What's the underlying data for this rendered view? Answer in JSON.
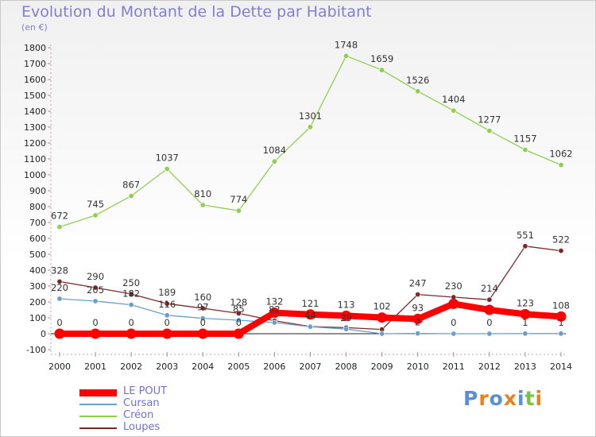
{
  "title": "Evolution du Montant de la Dette par Habitant",
  "subtitle": "(en €)",
  "logo": {
    "text": "Proxiti",
    "colors": [
      "#5a8fd6",
      "#e6821e",
      "#5a8fd6",
      "#e6821e",
      "#5a8fd6",
      "#7ac142",
      "#e6821e"
    ]
  },
  "chart_data": {
    "type": "line",
    "x": [
      "2000",
      "2001",
      "2002",
      "2003",
      "2004",
      "2005",
      "2006",
      "2007",
      "2008",
      "2009",
      "2010",
      "2011",
      "2012",
      "2013",
      "2014"
    ],
    "ylim": [
      -100,
      1800
    ],
    "yticks": [
      -100,
      0,
      100,
      200,
      300,
      400,
      500,
      600,
      700,
      800,
      900,
      1000,
      1100,
      1200,
      1300,
      1400,
      1500,
      1600,
      1700,
      1800
    ],
    "grid": false,
    "legend": "bottom-left",
    "series": [
      {
        "name": "LE POUT",
        "color": "#ff0000",
        "values": [
          0,
          0,
          0,
          0,
          0,
          0,
          132,
          121,
          113,
          102,
          93,
          188,
          150,
          123,
          108
        ],
        "labels": [
          "0",
          "0",
          "0",
          "0",
          "0",
          "0",
          "132",
          "121",
          "113",
          "102",
          "93",
          "",
          "",
          "123",
          "108"
        ]
      },
      {
        "name": "Cursan",
        "color": "#6a9ecf",
        "values": [
          220,
          205,
          182,
          116,
          97,
          85,
          70,
          44,
          29,
          0,
          2,
          0,
          0,
          1,
          1
        ],
        "labels": [
          "220",
          "205",
          "182",
          "116",
          "97",
          "85",
          "",
          "44",
          "29",
          "",
          "2",
          "0",
          "0",
          "1",
          "1"
        ]
      },
      {
        "name": "Créon",
        "color": "#8fcf4f",
        "values": [
          672,
          745,
          867,
          1037,
          810,
          774,
          1084,
          1301,
          1748,
          1659,
          1526,
          1404,
          1277,
          1157,
          1062
        ],
        "labels": [
          "672",
          "745",
          "867",
          "1037",
          "810",
          "774",
          "1084",
          "1301",
          "1748",
          "1659",
          "1526",
          "1404",
          "1277",
          "1157",
          "1062"
        ]
      },
      {
        "name": "Loupes",
        "color": "#7a2a2a",
        "values": [
          328,
          290,
          250,
          189,
          160,
          128,
          82,
          45,
          38,
          27,
          247,
          230,
          214,
          551,
          522
        ],
        "labels": [
          "328",
          "290",
          "250",
          "189",
          "160",
          "128",
          "82",
          "",
          "",
          "",
          "247",
          "230",
          "214",
          "551",
          "522"
        ]
      }
    ]
  }
}
